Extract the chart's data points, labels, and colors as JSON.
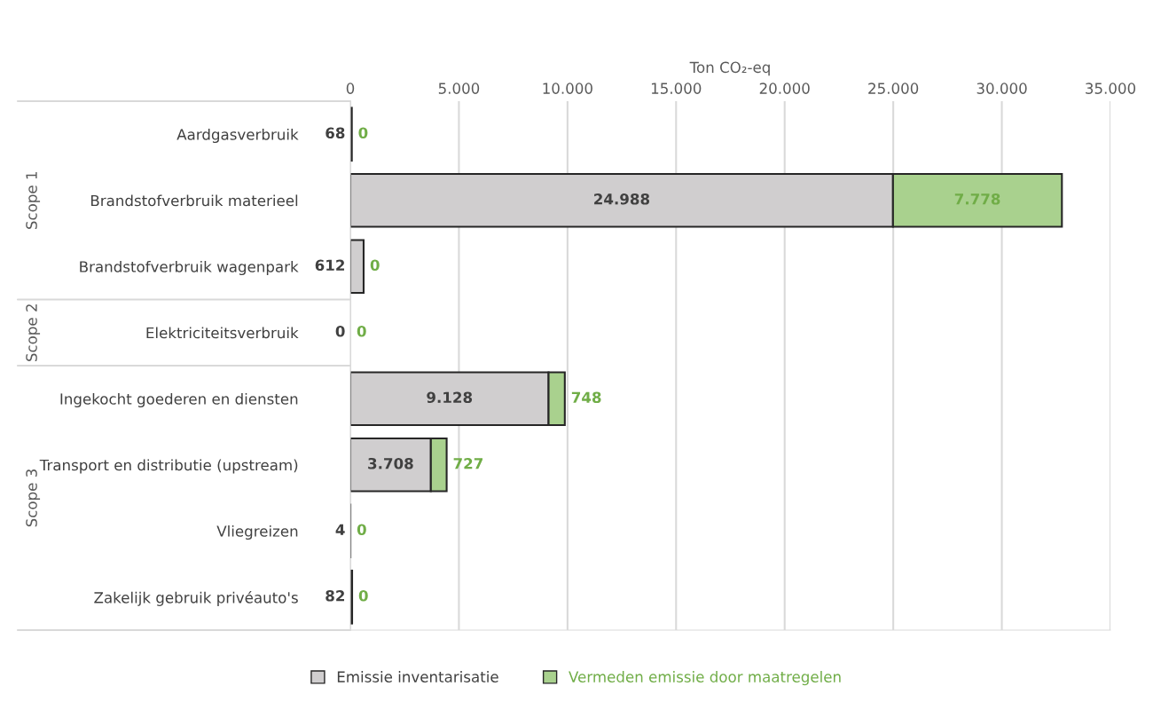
{
  "chart_data": {
    "type": "bar",
    "orientation": "horizontal",
    "stacked": true,
    "xlabel": "Ton CO₂-eq",
    "categories": [
      "Aardgasverbruik",
      "Brandstofverbruik materieel",
      "Brandstofverbruik wagenpark",
      "Elektriciteitsverbruik",
      "Ingekocht goederen en diensten",
      "Transport en distributie (upstream)",
      "Vliegreizen",
      "Zakelijk gebruik privéauto's"
    ],
    "series": [
      {
        "name": "Emissie inventarisatie",
        "color": "#d0cecf",
        "values": [
          68,
          24988,
          612,
          0,
          9128,
          3708,
          4,
          82
        ],
        "value_labels": [
          "68",
          "24.988",
          "612",
          "0",
          "9.128",
          "3.708",
          "4",
          "82"
        ]
      },
      {
        "name": "Vermeden emissie door maatregelen",
        "color": "#a9d18e",
        "values": [
          0,
          7778,
          0,
          0,
          748,
          727,
          0,
          0
        ],
        "value_labels": [
          "0",
          "7.778",
          "0",
          "0",
          "748",
          "727",
          "0",
          "0"
        ]
      }
    ],
    "xlim": [
      0,
      35000
    ],
    "xticks": [
      0,
      {
        "value": 5000,
        "label": "5.000"
      },
      {
        "value": 10000,
        "label": "10.000"
      },
      {
        "value": 15000,
        "label": "15.000"
      },
      {
        "value": 20000,
        "label": "20.000"
      },
      {
        "value": 25000,
        "label": "25.000"
      },
      {
        "value": 30000,
        "label": "30.000"
      },
      {
        "value": 35000,
        "label": "35.000"
      }
    ],
    "grid": "x",
    "legend": "bottom",
    "annotations": [
      "Scope 1",
      "Scope 2",
      "Scope 3"
    ]
  }
}
